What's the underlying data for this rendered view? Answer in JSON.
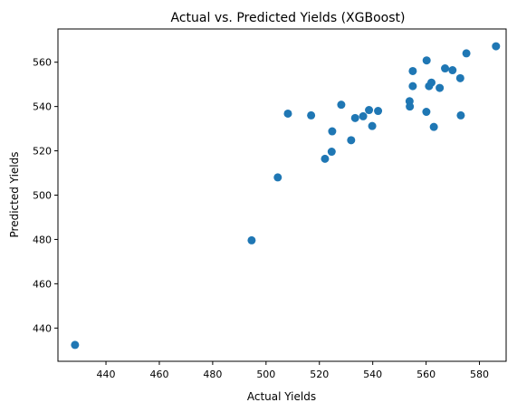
{
  "chart_data": {
    "type": "scatter",
    "title": "Actual vs. Predicted Yields (XGBoost)",
    "xlabel": "Actual Yields",
    "ylabel": "Predicted Yields",
    "xlim": [
      422,
      590
    ],
    "ylim": [
      425,
      575
    ],
    "xticks": [
      440,
      460,
      480,
      500,
      520,
      540,
      560,
      580
    ],
    "yticks": [
      440,
      460,
      480,
      500,
      520,
      540,
      560
    ],
    "grid": false,
    "marker_color": "#1f77b4",
    "points": [
      {
        "x": 428.4,
        "y": 432.4
      },
      {
        "x": 494.6,
        "y": 479.6
      },
      {
        "x": 504.4,
        "y": 508.0
      },
      {
        "x": 508.2,
        "y": 536.8
      },
      {
        "x": 516.9,
        "y": 536.0
      },
      {
        "x": 522.1,
        "y": 516.4
      },
      {
        "x": 524.6,
        "y": 519.6
      },
      {
        "x": 524.8,
        "y": 528.8
      },
      {
        "x": 528.2,
        "y": 540.8
      },
      {
        "x": 531.9,
        "y": 524.8
      },
      {
        "x": 533.4,
        "y": 534.8
      },
      {
        "x": 536.4,
        "y": 535.6
      },
      {
        "x": 538.6,
        "y": 538.4
      },
      {
        "x": 539.8,
        "y": 531.2
      },
      {
        "x": 542.0,
        "y": 538.0
      },
      {
        "x": 553.8,
        "y": 542.4
      },
      {
        "x": 553.9,
        "y": 540.0
      },
      {
        "x": 555.0,
        "y": 556.0
      },
      {
        "x": 555.0,
        "y": 549.2
      },
      {
        "x": 560.1,
        "y": 537.6
      },
      {
        "x": 560.2,
        "y": 560.8
      },
      {
        "x": 561.1,
        "y": 549.2
      },
      {
        "x": 562.0,
        "y": 550.8
      },
      {
        "x": 562.9,
        "y": 530.8
      },
      {
        "x": 565.1,
        "y": 548.4
      },
      {
        "x": 567.1,
        "y": 557.2
      },
      {
        "x": 569.9,
        "y": 556.4
      },
      {
        "x": 572.8,
        "y": 552.8
      },
      {
        "x": 573.0,
        "y": 536.0
      },
      {
        "x": 575.1,
        "y": 564.0
      },
      {
        "x": 586.2,
        "y": 567.2
      }
    ]
  }
}
